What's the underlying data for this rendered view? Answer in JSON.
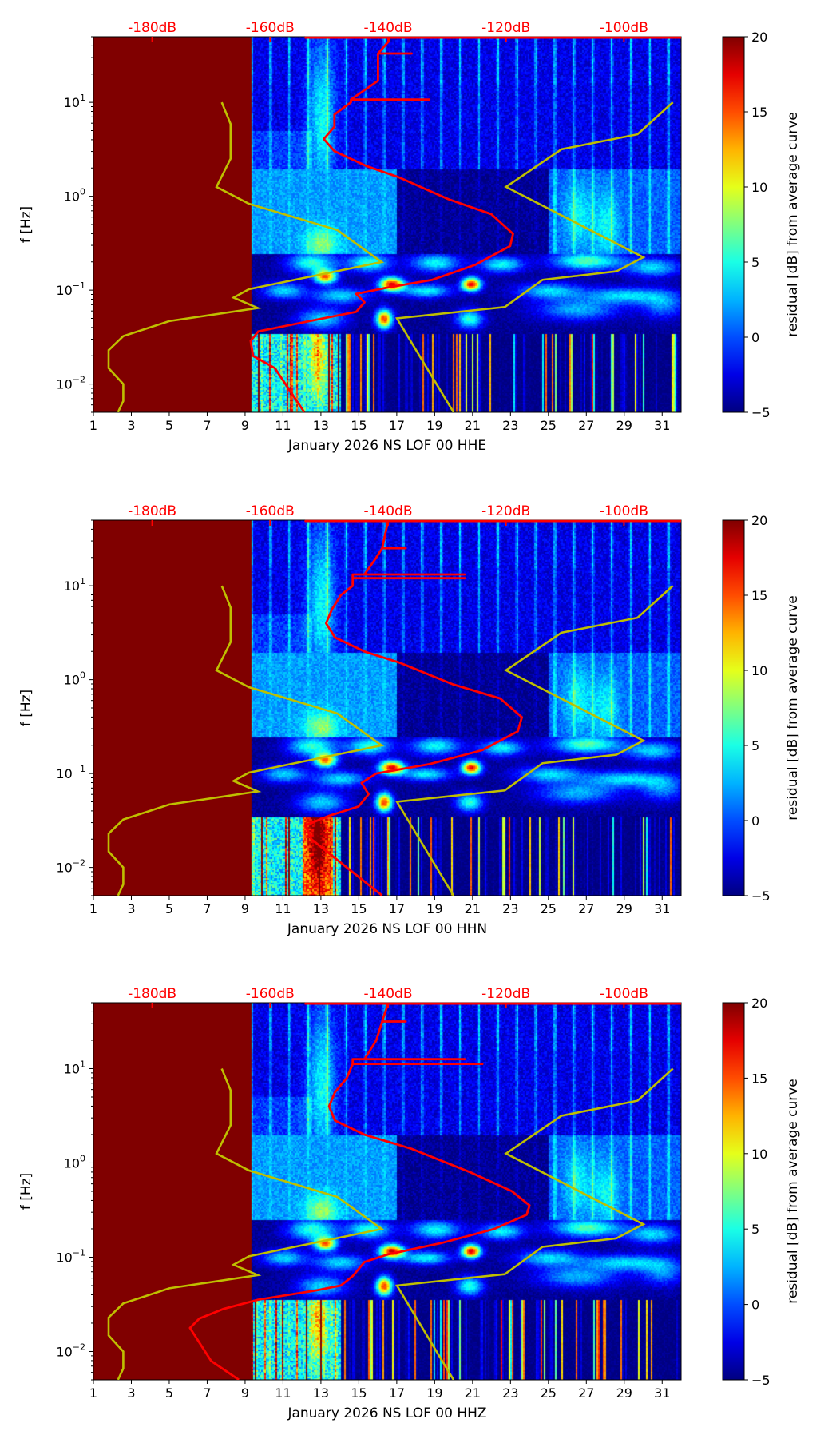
{
  "chart_data": [
    {
      "type": "heatmap",
      "xlabel": "January 2026 NS LOF 00 HHE",
      "ylabel": "f [Hz]",
      "xlim": [
        1,
        32
      ],
      "ylim": [
        0.005,
        50
      ],
      "yscale": "log",
      "xticks": [
        "1",
        "3",
        "5",
        "7",
        "9",
        "11",
        "13",
        "15",
        "17",
        "19",
        "21",
        "23",
        "25",
        "27",
        "29",
        "31"
      ],
      "yticks": [
        {
          "base": "10",
          "exp": "1",
          "value": 10
        },
        {
          "base": "10",
          "exp": "0",
          "value": 1
        },
        {
          "base": "10",
          "exp": "−1",
          "value": 0.1
        },
        {
          "base": "10",
          "exp": "−2",
          "value": 0.01
        }
      ],
      "top_axis": {
        "labels": [
          "-180dB",
          "-160dB",
          "-140dB",
          "-120dB",
          "-100dB"
        ],
        "values": [
          -180,
          -160,
          -140,
          -120,
          -100
        ]
      },
      "colorbar": {
        "label": "residual [dB] from average curve",
        "ticks": [
          "20",
          "15",
          "10",
          "5",
          "0",
          "−5"
        ],
        "values": [
          20,
          15,
          10,
          5,
          0,
          -5
        ],
        "range": [
          -5,
          20
        ],
        "colormap": "jet"
      },
      "no_data_until_day": 9.3,
      "psd_curve": {
        "color": "#ff0000",
        "points_db_log10hz": [
          [
            -154.2,
            -2.3
          ],
          [
            -159.2,
            -1.83
          ],
          [
            -162.9,
            -1.7
          ],
          [
            -163.3,
            -1.54
          ],
          [
            -162,
            -1.44
          ],
          [
            -151.8,
            -1.31
          ],
          [
            -145.4,
            -1.23
          ],
          [
            -144,
            -1.13
          ],
          [
            -145.4,
            -1.04
          ],
          [
            -139.9,
            -0.97
          ],
          [
            -132.5,
            -0.89
          ],
          [
            -125.2,
            -0.73
          ],
          [
            -119.3,
            -0.53
          ],
          [
            -118.8,
            -0.4
          ],
          [
            -122.5,
            -0.19
          ],
          [
            -129.8,
            -0.03
          ],
          [
            -138.1,
            0.2
          ],
          [
            -143.6,
            0.32
          ],
          [
            -149.1,
            0.48
          ],
          [
            -150.9,
            0.61
          ],
          [
            -149.1,
            0.74
          ],
          [
            -149.1,
            0.87
          ],
          [
            -146.3,
            1.0
          ],
          [
            -146.3,
            1.03
          ],
          [
            -133,
            1.03
          ],
          [
            -146.3,
            1.03
          ],
          [
            -141.7,
            1.23
          ],
          [
            -141.7,
            1.42
          ],
          [
            -141.7,
            1.52
          ],
          [
            -136,
            1.52
          ],
          [
            -141.7,
            1.52
          ],
          [
            -139.9,
            1.65
          ],
          [
            -139.9,
            1.69
          ],
          [
            -154,
            1.69
          ],
          [
            -90.3,
            1.69
          ]
        ]
      }
    },
    {
      "type": "heatmap",
      "xlabel": "January 2026 NS LOF 00 HHN",
      "ylabel": "f [Hz]",
      "xlim": [
        1,
        32
      ],
      "ylim": [
        0.005,
        50
      ],
      "yscale": "log",
      "xticks": [
        "1",
        "3",
        "5",
        "7",
        "9",
        "11",
        "13",
        "15",
        "17",
        "19",
        "21",
        "23",
        "25",
        "27",
        "29",
        "31"
      ],
      "yticks": [
        {
          "base": "10",
          "exp": "1",
          "value": 10
        },
        {
          "base": "10",
          "exp": "0",
          "value": 1
        },
        {
          "base": "10",
          "exp": "−1",
          "value": 0.1
        },
        {
          "base": "10",
          "exp": "−2",
          "value": 0.01
        }
      ],
      "top_axis": {
        "labels": [
          "-180dB",
          "-160dB",
          "-140dB",
          "-120dB",
          "-100dB"
        ],
        "values": [
          -180,
          -160,
          -140,
          -120,
          -100
        ]
      },
      "colorbar": {
        "label": "residual [dB] from average curve",
        "ticks": [
          "20",
          "15",
          "10",
          "5",
          "0",
          "−5"
        ],
        "values": [
          20,
          15,
          10,
          5,
          0,
          -5
        ],
        "range": [
          -5,
          20
        ],
        "colormap": "jet"
      },
      "no_data_until_day": 9.3,
      "psd_curve": {
        "color": "#ff0000",
        "points_db_log10hz": [
          [
            -141,
            -2.3
          ],
          [
            -147,
            -2.0
          ],
          [
            -153,
            -1.7
          ],
          [
            -154,
            -1.55
          ],
          [
            -150,
            -1.45
          ],
          [
            -145,
            -1.35
          ],
          [
            -143.3,
            -1.22
          ],
          [
            -144.5,
            -1.1
          ],
          [
            -142,
            -1.0
          ],
          [
            -133,
            -0.9
          ],
          [
            -124,
            -0.75
          ],
          [
            -118,
            -0.55
          ],
          [
            -117.3,
            -0.4
          ],
          [
            -121,
            -0.2
          ],
          [
            -129,
            -0.05
          ],
          [
            -138,
            0.18
          ],
          [
            -144,
            0.3
          ],
          [
            -149,
            0.45
          ],
          [
            -150.5,
            0.6
          ],
          [
            -149.5,
            0.75
          ],
          [
            -148,
            0.9
          ],
          [
            -146,
            1.0
          ],
          [
            -146,
            1.08
          ],
          [
            -127,
            1.08
          ],
          [
            -146,
            1.08
          ],
          [
            -146,
            1.12
          ],
          [
            -127,
            1.12
          ],
          [
            -144,
            1.12
          ],
          [
            -142,
            1.3
          ],
          [
            -141,
            1.4
          ],
          [
            -137,
            1.4
          ],
          [
            -141,
            1.4
          ],
          [
            -140,
            1.69
          ],
          [
            -154,
            1.69
          ],
          [
            -90.3,
            1.69
          ]
        ]
      }
    },
    {
      "type": "heatmap",
      "xlabel": "January 2026 NS LOF 00 HHZ",
      "ylabel": "f [Hz]",
      "xlim": [
        1,
        32
      ],
      "ylim": [
        0.005,
        50
      ],
      "yscale": "log",
      "xticks": [
        "1",
        "3",
        "5",
        "7",
        "9",
        "11",
        "13",
        "15",
        "17",
        "19",
        "21",
        "23",
        "25",
        "27",
        "29",
        "31"
      ],
      "yticks": [
        {
          "base": "10",
          "exp": "1",
          "value": 10
        },
        {
          "base": "10",
          "exp": "0",
          "value": 1
        },
        {
          "base": "10",
          "exp": "−1",
          "value": 0.1
        },
        {
          "base": "10",
          "exp": "−2",
          "value": 0.01
        }
      ],
      "top_axis": {
        "labels": [
          "-180dB",
          "-160dB",
          "-140dB",
          "-120dB",
          "-100dB"
        ],
        "values": [
          -180,
          -160,
          -140,
          -120,
          -100
        ]
      },
      "colorbar": {
        "label": "residual [dB] from average curve",
        "ticks": [
          "20",
          "15",
          "10",
          "5",
          "0",
          "−5"
        ],
        "values": [
          20,
          15,
          10,
          5,
          0,
          -5
        ],
        "range": [
          -5,
          20
        ],
        "colormap": "jet"
      },
      "no_data_until_day": 9.3,
      "psd_curve": {
        "color": "#ff0000",
        "points_db_log10hz": [
          [
            -165.3,
            -2.3
          ],
          [
            -170,
            -2.1
          ],
          [
            -173.6,
            -1.75
          ],
          [
            -172,
            -1.65
          ],
          [
            -168,
            -1.55
          ],
          [
            -162,
            -1.45
          ],
          [
            -152,
            -1.35
          ],
          [
            -148,
            -1.3
          ],
          [
            -146,
            -1.2
          ],
          [
            -144,
            -1.05
          ],
          [
            -140,
            -0.97
          ],
          [
            -131,
            -0.85
          ],
          [
            -122,
            -0.7
          ],
          [
            -116.5,
            -0.55
          ],
          [
            -116,
            -0.45
          ],
          [
            -119,
            -0.3
          ],
          [
            -126,
            -0.1
          ],
          [
            -136,
            0.15
          ],
          [
            -144,
            0.3
          ],
          [
            -149,
            0.45
          ],
          [
            -150,
            0.6
          ],
          [
            -149,
            0.75
          ],
          [
            -147,
            0.9
          ],
          [
            -146,
            1.05
          ],
          [
            -124,
            1.05
          ],
          [
            -146,
            1.05
          ],
          [
            -146,
            1.1
          ],
          [
            -127,
            1.1
          ],
          [
            -144,
            1.1
          ],
          [
            -142,
            1.3
          ],
          [
            -141,
            1.5
          ],
          [
            -137,
            1.5
          ],
          [
            -141,
            1.5
          ],
          [
            -140,
            1.69
          ],
          [
            -154,
            1.69
          ],
          [
            -90.3,
            1.69
          ]
        ]
      }
    }
  ],
  "noise_models": {
    "color": "#bfbf00",
    "low_noise_model": [
      [
        -185.8,
        -2.3
      ],
      [
        -184.9,
        -2.18
      ],
      [
        -184.9,
        -2.0
      ],
      [
        -187.4,
        -1.83
      ],
      [
        -187.4,
        -1.64
      ],
      [
        -184.9,
        -1.49
      ],
      [
        -177.1,
        -1.33
      ],
      [
        -162.1,
        -1.19
      ],
      [
        -166.2,
        -1.08
      ],
      [
        -163.6,
        -0.99
      ],
      [
        -141.1,
        -0.7
      ],
      [
        -148.6,
        -0.36
      ],
      [
        -163.6,
        -0.08
      ],
      [
        -169.1,
        0.1
      ],
      [
        -166.7,
        0.4
      ],
      [
        -166.7,
        0.77
      ],
      [
        -168.2,
        1.0
      ]
    ],
    "high_noise_model": [
      [
        -128.9,
        -2.3
      ],
      [
        -138.5,
        -1.3
      ],
      [
        -120.2,
        -1.18
      ],
      [
        -113.8,
        -0.89
      ],
      [
        -101.3,
        -0.8
      ],
      [
        -96.7,
        -0.65
      ],
      [
        -120.0,
        0.1
      ],
      [
        -110.6,
        0.5
      ],
      [
        -97.7,
        0.66
      ],
      [
        -91.7,
        1.0
      ]
    ]
  }
}
